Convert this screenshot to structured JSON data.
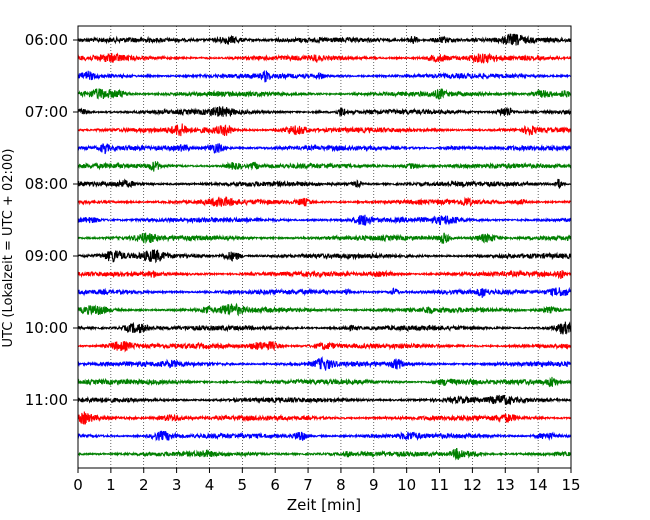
{
  "chart_data": {
    "type": "line",
    "title": "",
    "xlabel": "Zeit  [min]",
    "ylabel": "UTC (Lokalzeit = UTC + 02:00)",
    "xlim": [
      0,
      15
    ],
    "x_ticks": [
      "0",
      "1",
      "2",
      "3",
      "4",
      "5",
      "6",
      "7",
      "8",
      "9",
      "10",
      "11",
      "12",
      "13",
      "14",
      "15"
    ],
    "y_ticks": [
      "06:00",
      "07:00",
      "08:00",
      "09:00",
      "10:00",
      "11:00"
    ],
    "grid": "vertical dotted lines at each minute",
    "trace_interval_minutes": 15,
    "first_trace": "06:00",
    "trace_count": 24,
    "trace_colors": [
      "#000000",
      "#ff0000",
      "#0000ff",
      "#008000"
    ],
    "series": [
      {
        "start": "06:00",
        "color": "#000000"
      },
      {
        "start": "06:15",
        "color": "#ff0000"
      },
      {
        "start": "06:30",
        "color": "#0000ff"
      },
      {
        "start": "06:45",
        "color": "#008000"
      },
      {
        "start": "07:00",
        "color": "#000000"
      },
      {
        "start": "07:15",
        "color": "#ff0000"
      },
      {
        "start": "07:30",
        "color": "#0000ff"
      },
      {
        "start": "07:45",
        "color": "#008000"
      },
      {
        "start": "08:00",
        "color": "#000000"
      },
      {
        "start": "08:15",
        "color": "#ff0000"
      },
      {
        "start": "08:30",
        "color": "#0000ff"
      },
      {
        "start": "08:45",
        "color": "#008000"
      },
      {
        "start": "09:00",
        "color": "#000000"
      },
      {
        "start": "09:15",
        "color": "#ff0000"
      },
      {
        "start": "09:30",
        "color": "#0000ff"
      },
      {
        "start": "09:45",
        "color": "#008000"
      },
      {
        "start": "10:00",
        "color": "#000000"
      },
      {
        "start": "10:15",
        "color": "#ff0000"
      },
      {
        "start": "10:30",
        "color": "#0000ff"
      },
      {
        "start": "10:45",
        "color": "#008000"
      },
      {
        "start": "11:00",
        "color": "#000000"
      },
      {
        "start": "11:15",
        "color": "#ff0000"
      },
      {
        "start": "11:30",
        "color": "#0000ff"
      },
      {
        "start": "11:45",
        "color": "#008000"
      }
    ]
  }
}
